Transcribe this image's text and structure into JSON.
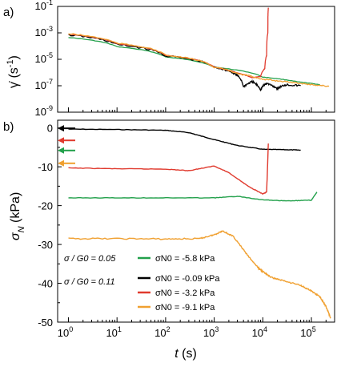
{
  "chart_data": [
    {
      "panel": "a)",
      "type": "line",
      "ylabel": "γ̇ (s⁻¹)",
      "yscale": "log",
      "ylim": [
        1e-09,
        0.1
      ],
      "yticks": [
        {
          "value": 0.1,
          "label": "10",
          "exp": "-1"
        },
        {
          "value": 0.001,
          "label": "10",
          "exp": "-3"
        },
        {
          "value": 1e-05,
          "label": "10",
          "exp": "-5"
        },
        {
          "value": 1e-07,
          "label": "10",
          "exp": "-7"
        },
        {
          "value": 1e-09,
          "label": "10",
          "exp": "-9"
        }
      ],
      "xscale": "log",
      "xlim": [
        0.6,
        300000
      ],
      "series": [
        {
          "color": "#22a04b",
          "points": [
            [
              1,
              0.00045
            ],
            [
              10,
              9e-05
            ],
            [
              100,
              1.5e-05
            ],
            [
              1000,
              2.5e-06
            ],
            [
              10000,
              4.5e-07
            ],
            [
              50000,
              2e-07
            ],
            [
              150000,
              1.2e-07
            ]
          ]
        },
        {
          "color": "#000000",
          "points": [
            [
              1,
              0.0007
            ],
            [
              10,
              0.00013
            ],
            [
              100,
              1.8e-05
            ],
            [
              1000,
              2.5e-06
            ],
            [
              2500,
              9e-07
            ],
            [
              4000,
              8e-08
            ],
            [
              6000,
              2e-07
            ],
            [
              9000,
              5e-08
            ],
            [
              12000,
              1.5e-07
            ],
            [
              20000,
              6e-08
            ],
            [
              30000,
              1.2e-07
            ],
            [
              60000,
              1e-07
            ]
          ]
        },
        {
          "color": "#e03a2e",
          "points": [
            [
              1,
              0.0008
            ],
            [
              10,
              0.00015
            ],
            [
              100,
              2e-05
            ],
            [
              1000,
              2.5e-06
            ],
            [
              3000,
              9e-07
            ],
            [
              6000,
              4e-07
            ],
            [
              9000,
              5e-07
            ],
            [
              11000,
              2e-06
            ],
            [
              12000,
              2e-05
            ],
            [
              12700,
              0.001
            ],
            [
              13000,
              0.08
            ]
          ]
        },
        {
          "color": "#f0a030",
          "points": [
            [
              1,
              0.00085
            ],
            [
              10,
              0.00016
            ],
            [
              100,
              2e-05
            ],
            [
              1000,
              2.5e-06
            ],
            [
              3000,
              8e-07
            ],
            [
              10000,
              3e-07
            ],
            [
              30000,
              2e-07
            ],
            [
              100000,
              1.2e-07
            ],
            [
              230000,
              9e-08
            ]
          ]
        }
      ]
    },
    {
      "panel": "b)",
      "type": "line",
      "ylabel": "σN (kPa)",
      "xlabel": "t (s)",
      "xscale": "log",
      "xlim": [
        0.6,
        300000
      ],
      "ylim": [
        -50,
        2
      ],
      "yticks": [
        0,
        -10,
        -20,
        -30,
        -40,
        -50
      ],
      "xticks": [
        {
          "value": 1,
          "label": "10",
          "exp": "0"
        },
        {
          "value": 10,
          "label": "10",
          "exp": "1"
        },
        {
          "value": 100,
          "label": "10",
          "exp": "2"
        },
        {
          "value": 1000,
          "label": "10",
          "exp": "3"
        },
        {
          "value": 10000,
          "label": "10",
          "exp": "4"
        },
        {
          "value": 100000,
          "label": "10",
          "exp": "5"
        }
      ],
      "arrows": [
        {
          "color": "#000000",
          "value": -0.09
        },
        {
          "color": "#e03a2e",
          "value": -3.2
        },
        {
          "color": "#22a04b",
          "value": -5.8
        },
        {
          "color": "#f0a030",
          "value": -9.1
        }
      ],
      "series": [
        {
          "color": "#000000",
          "points": [
            [
              1,
              -0.3
            ],
            [
              10,
              -0.4
            ],
            [
              100,
              -0.6
            ],
            [
              300,
              -1.2
            ],
            [
              1000,
              -3.0
            ],
            [
              3000,
              -4.5
            ],
            [
              10000,
              -5.5
            ],
            [
              30000,
              -5.6
            ],
            [
              60000,
              -5.7
            ]
          ]
        },
        {
          "color": "#e03a2e",
          "points": [
            [
              1,
              -10.3
            ],
            [
              10,
              -10.5
            ],
            [
              100,
              -10.6
            ],
            [
              300,
              -11
            ],
            [
              1000,
              -9.8
            ],
            [
              2000,
              -11.5
            ],
            [
              5000,
              -15
            ],
            [
              10000,
              -17
            ],
            [
              12000,
              -16.5
            ],
            [
              13000,
              -4
            ]
          ]
        },
        {
          "color": "#22a04b",
          "points": [
            [
              1,
              -18
            ],
            [
              10,
              -18
            ],
            [
              100,
              -18
            ],
            [
              1000,
              -18
            ],
            [
              3000,
              -17.6
            ],
            [
              10000,
              -18.5
            ],
            [
              30000,
              -18.8
            ],
            [
              100000,
              -18.6
            ],
            [
              130000,
              -16.5
            ]
          ]
        },
        {
          "color": "#f0a030",
          "points": [
            [
              1,
              -28.5
            ],
            [
              10,
              -28.5
            ],
            [
              100,
              -28.6
            ],
            [
              500,
              -28.5
            ],
            [
              1000,
              -27.5
            ],
            [
              1500,
              -26.5
            ],
            [
              2500,
              -28
            ],
            [
              5000,
              -33
            ],
            [
              8000,
              -36
            ],
            [
              10000,
              -37
            ],
            [
              15000,
              -38.5
            ],
            [
              30000,
              -39.5
            ],
            [
              60000,
              -40.5
            ],
            [
              100000,
              -42
            ],
            [
              150000,
              -43.5
            ],
            [
              200000,
              -46
            ],
            [
              250000,
              -49
            ]
          ]
        }
      ]
    }
  ],
  "axes": {
    "panel_a_label": "a)",
    "panel_b_label": "b)",
    "a_ylabel": "γ̇ (s⁻¹)",
    "b_ylabel": "σN (kPa)",
    "xlabel": "t (s)"
  },
  "legend": {
    "ratio_005": "σ / G0 = 0.05",
    "ratio_011": "σ / G0 = 0.11",
    "entries": [
      {
        "color": "#22a04b",
        "label": "σN0 = -5.8 kPa"
      },
      {
        "color": "#000000",
        "label": "σN0 = -0.09 kPa"
      },
      {
        "color": "#e03a2e",
        "label": "σN0 = -3.2 kPa"
      },
      {
        "color": "#f0a030",
        "label": "σN0 = -9.1 kPa"
      }
    ]
  }
}
